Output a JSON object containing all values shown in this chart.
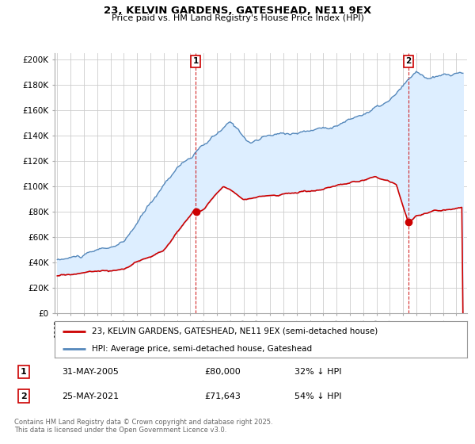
{
  "title": "23, KELVIN GARDENS, GATESHEAD, NE11 9EX",
  "subtitle": "Price paid vs. HM Land Registry's House Price Index (HPI)",
  "ylabel_ticks": [
    "£0",
    "£20K",
    "£40K",
    "£60K",
    "£80K",
    "£100K",
    "£120K",
    "£140K",
    "£160K",
    "£180K",
    "£200K"
  ],
  "ytick_values": [
    0,
    20000,
    40000,
    60000,
    80000,
    100000,
    120000,
    140000,
    160000,
    180000,
    200000
  ],
  "ylim": [
    0,
    205000
  ],
  "xlim_start": 1994.8,
  "xlim_end": 2025.8,
  "line1_color": "#cc0000",
  "line2_color": "#5588bb",
  "fill_color": "#ddeeff",
  "marker1_date": 2005.41,
  "marker2_date": 2021.41,
  "dot1_y": 80000,
  "dot2_y": 71643,
  "annotation1": {
    "label": "1",
    "x": 2005.41,
    "date": "31-MAY-2005",
    "price": "£80,000",
    "note": "32% ↓ HPI"
  },
  "annotation2": {
    "label": "2",
    "x": 2021.41,
    "date": "25-MAY-2021",
    "price": "£71,643",
    "note": "54% ↓ HPI"
  },
  "legend_label1": "23, KELVIN GARDENS, GATESHEAD, NE11 9EX (semi-detached house)",
  "legend_label2": "HPI: Average price, semi-detached house, Gateshead",
  "footer": "Contains HM Land Registry data © Crown copyright and database right 2025.\nThis data is licensed under the Open Government Licence v3.0.",
  "background_color": "#ffffff",
  "grid_color": "#cccccc"
}
